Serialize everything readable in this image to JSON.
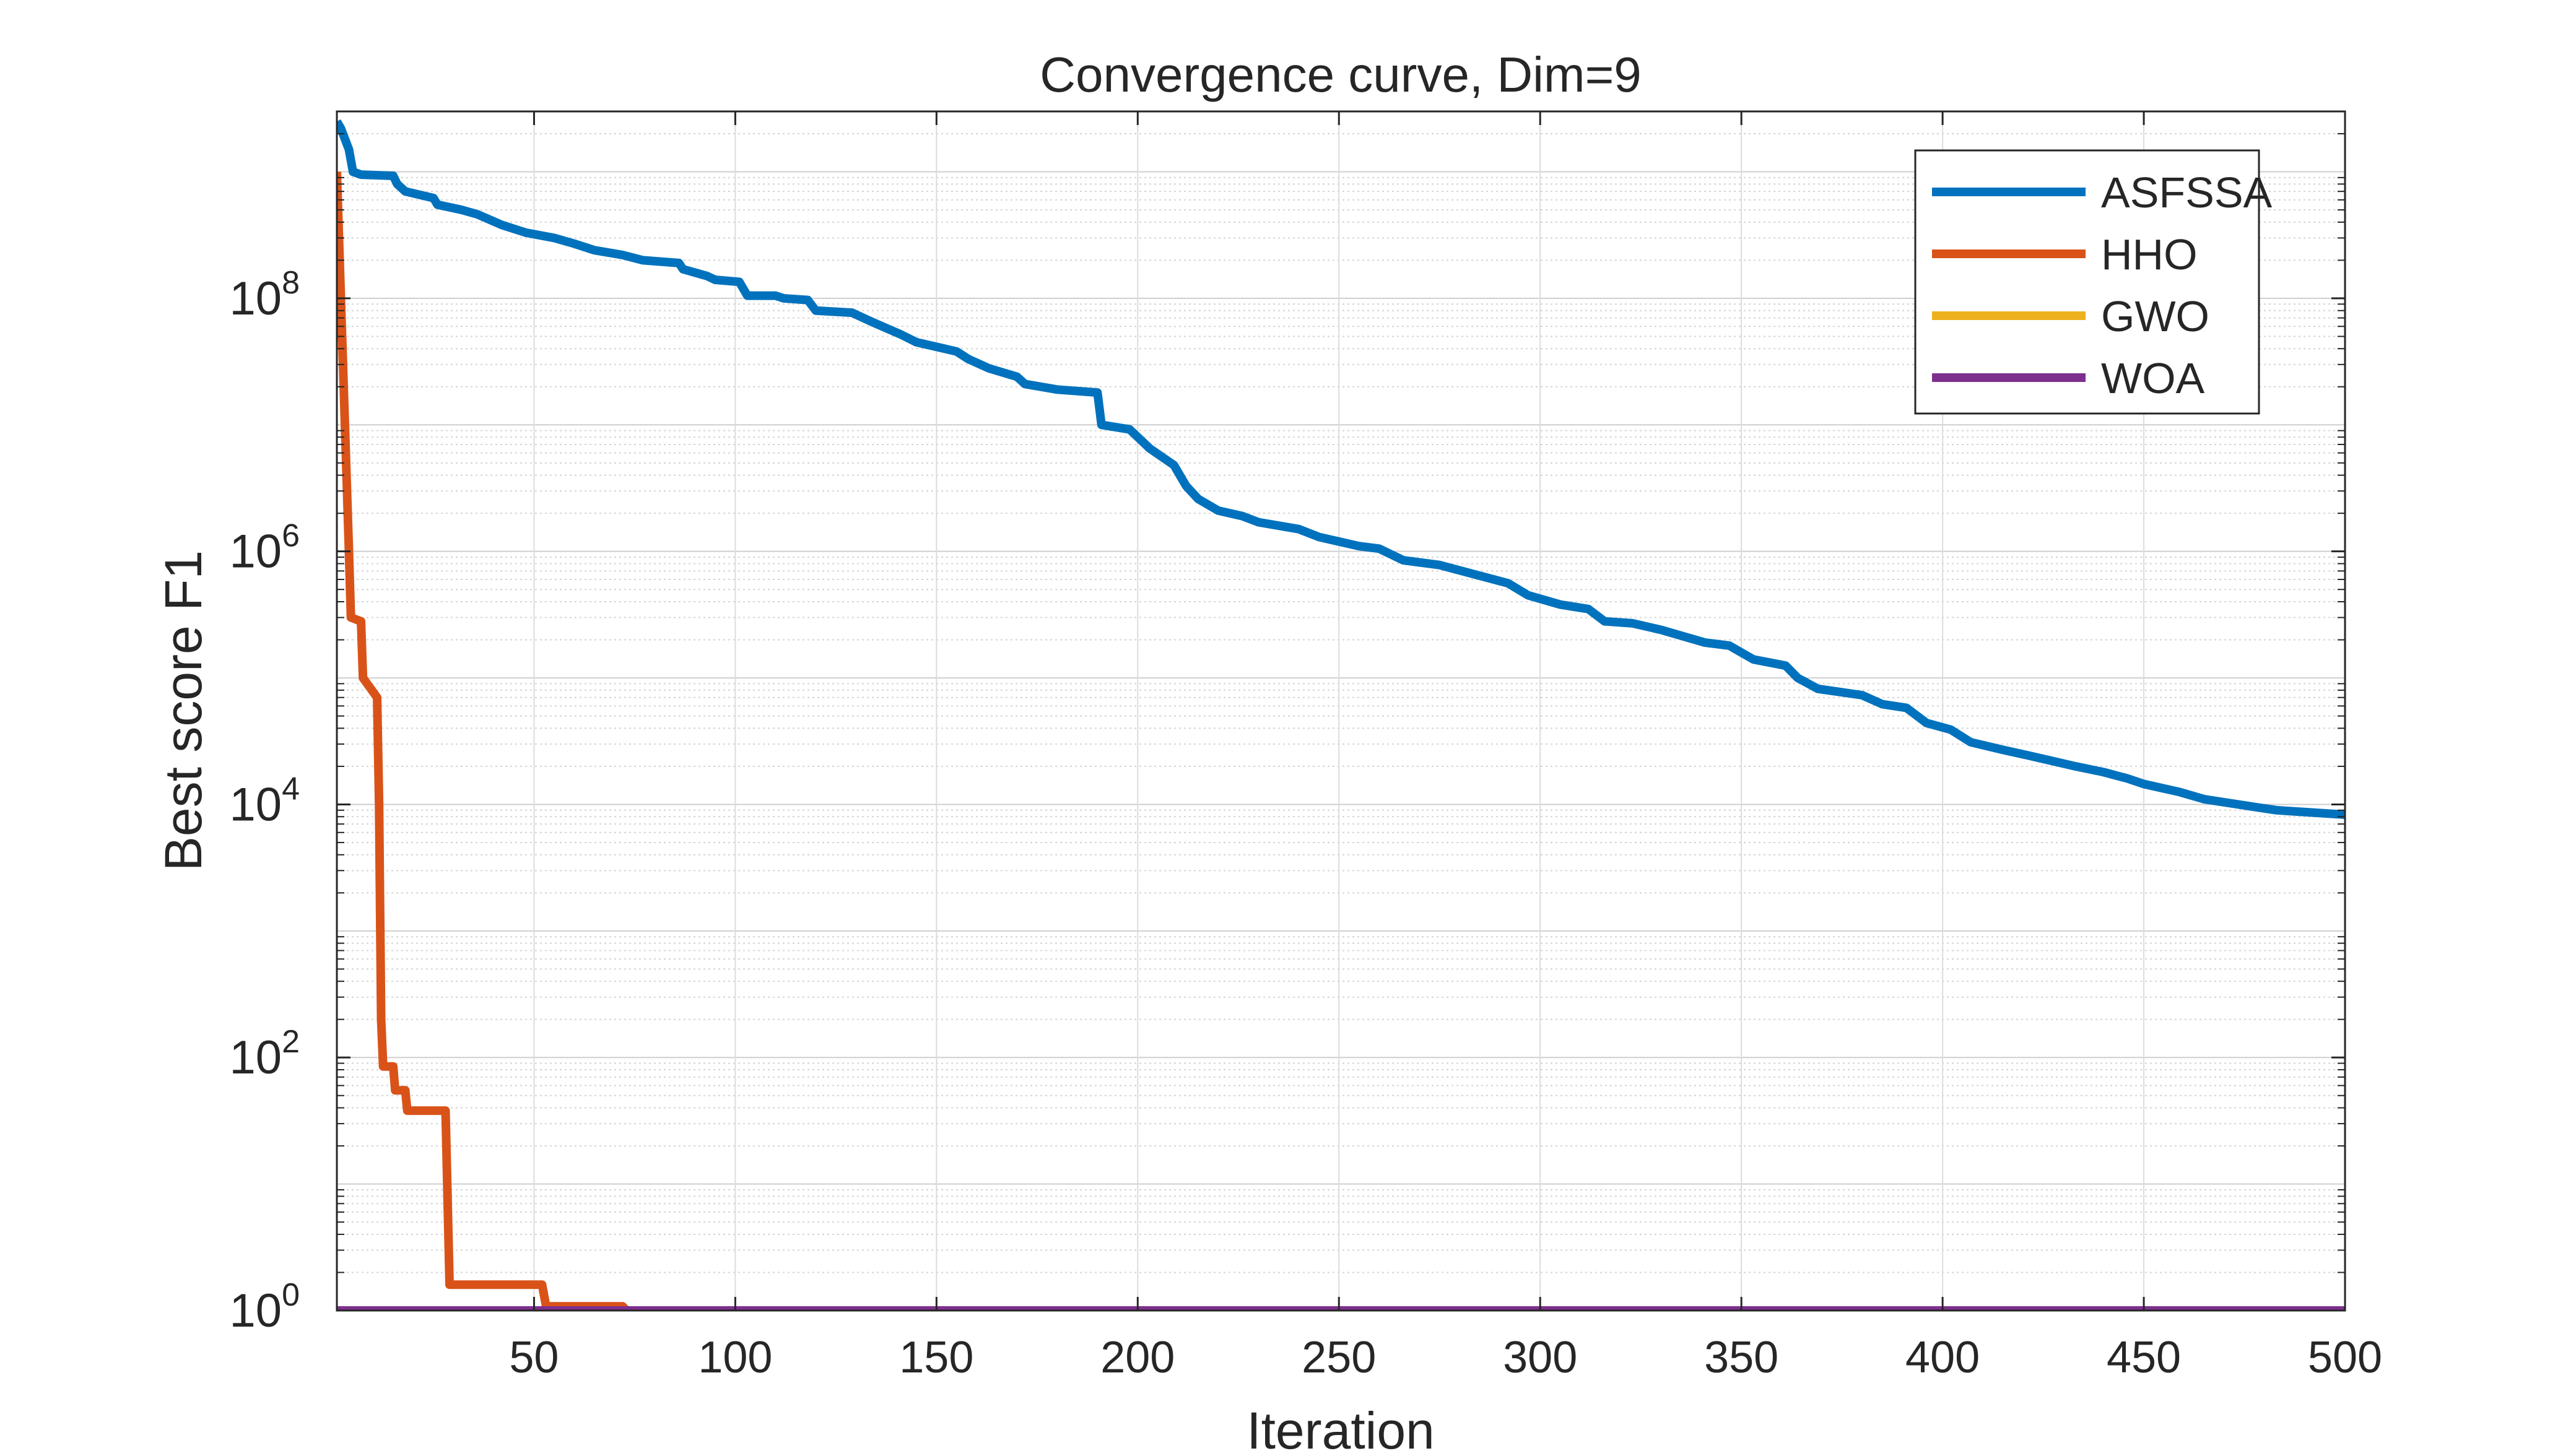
{
  "chart_data": {
    "type": "line",
    "title": "Convergence curve, Dim=9",
    "xlabel": "Iteration",
    "ylabel": "Best score F1",
    "xlim": [
      1,
      500
    ],
    "ylim": [
      1,
      3000000000.0
    ],
    "yscale": "log",
    "grid": true,
    "legend_position": "top-right",
    "x_ticks": [
      50,
      100,
      150,
      200,
      250,
      300,
      350,
      400,
      450,
      500
    ],
    "y_ticks": [
      {
        "base": "10",
        "exp": "0",
        "value": 1
      },
      {
        "base": "10",
        "exp": "2",
        "value": 100
      },
      {
        "base": "10",
        "exp": "4",
        "value": 10000
      },
      {
        "base": "10",
        "exp": "6",
        "value": 1000000
      },
      {
        "base": "10",
        "exp": "8",
        "value": 100000000
      }
    ],
    "series": [
      {
        "name": "ASFSSA",
        "color": "#0072BD",
        "points": [
          [
            1,
            2500000000.0
          ],
          [
            2,
            2200000000.0
          ],
          [
            4,
            1500000000.0
          ],
          [
            5,
            1000000000.0
          ],
          [
            7,
            950000000.0
          ],
          [
            15,
            930000000.0
          ],
          [
            16,
            800000000.0
          ],
          [
            18,
            700000000.0
          ],
          [
            25,
            620000000.0
          ],
          [
            26,
            550000000.0
          ],
          [
            32,
            500000000.0
          ],
          [
            36,
            460000000.0
          ],
          [
            42,
            380000000.0
          ],
          [
            48,
            330000000.0
          ],
          [
            55,
            300000000.0
          ],
          [
            60,
            270000000.0
          ],
          [
            65,
            240000000.0
          ],
          [
            72,
            220000000.0
          ],
          [
            77,
            200000000.0
          ],
          [
            86,
            190000000.0
          ],
          [
            87,
            170000000.0
          ],
          [
            93,
            150000000.0
          ],
          [
            95,
            140000000.0
          ],
          [
            101,
            135000000.0
          ],
          [
            103,
            105000000.0
          ],
          [
            110,
            105000000.0
          ],
          [
            112,
            100000000.0
          ],
          [
            118,
            97000000.0
          ],
          [
            120,
            80000000.0
          ],
          [
            129,
            77000000.0
          ],
          [
            134,
            65000000.0
          ],
          [
            141,
            52000000.0
          ],
          [
            145,
            45000000.0
          ],
          [
            155,
            38000000.0
          ],
          [
            158,
            33000000.0
          ],
          [
            163,
            28000000.0
          ],
          [
            170,
            24000000.0
          ],
          [
            172,
            21000000.0
          ],
          [
            180,
            19000000.0
          ],
          [
            190,
            18000000.0
          ],
          [
            191,
            10000000.0
          ],
          [
            198,
            9200000.0
          ],
          [
            203,
            6500000.0
          ],
          [
            209,
            4800000.0
          ],
          [
            212,
            3300000.0
          ],
          [
            215,
            2600000.0
          ],
          [
            220,
            2100000.0
          ],
          [
            226,
            1900000.0
          ],
          [
            230,
            1700000.0
          ],
          [
            240,
            1500000.0
          ],
          [
            245,
            1300000.0
          ],
          [
            255,
            1100000.0
          ],
          [
            260,
            1050000.0
          ],
          [
            266,
            850000.0
          ],
          [
            275,
            780000.0
          ],
          [
            282,
            680000.0
          ],
          [
            292,
            560000.0
          ],
          [
            297,
            450000.0
          ],
          [
            305,
            380000.0
          ],
          [
            312,
            350000.0
          ],
          [
            316,
            280000.0
          ],
          [
            323,
            270000.0
          ],
          [
            330,
            240000.0
          ],
          [
            341,
            190000.0
          ],
          [
            347,
            180000.0
          ],
          [
            353,
            140000.0
          ],
          [
            361,
            125000.0
          ],
          [
            364,
            100000.0
          ],
          [
            369,
            82000.0
          ],
          [
            380,
            73000.0
          ],
          [
            385,
            62000.0
          ],
          [
            391,
            58000.0
          ],
          [
            396,
            44000.0
          ],
          [
            402,
            39000.0
          ],
          [
            407,
            31000.0
          ],
          [
            415,
            27000.0
          ],
          [
            421,
            24500.0
          ],
          [
            433,
            20000.0
          ],
          [
            440,
            18000.0
          ],
          [
            446,
            16000.0
          ],
          [
            450,
            14500.0
          ],
          [
            459,
            12500.0
          ],
          [
            465,
            11000.0
          ],
          [
            478,
            9500.0
          ],
          [
            483,
            9000.0
          ],
          [
            500,
            8300.0
          ]
        ]
      },
      {
        "name": "HHO",
        "color": "#D95319",
        "points": [
          [
            1,
            1000000000.0
          ],
          [
            2,
            100000000.0
          ],
          [
            3,
            10000000.0
          ],
          [
            4,
            1000000.0
          ],
          [
            4.5,
            300000.0
          ],
          [
            7,
            280000.0
          ],
          [
            7.5,
            100000.0
          ],
          [
            11,
            70000.0
          ],
          [
            11.5,
            10000.0
          ],
          [
            12,
            200
          ],
          [
            12.5,
            85
          ],
          [
            15,
            85
          ],
          [
            15.5,
            55
          ],
          [
            18,
            55
          ],
          [
            18.5,
            38
          ],
          [
            28,
            38
          ],
          [
            29,
            1.6
          ],
          [
            52,
            1.6
          ],
          [
            53,
            1.08
          ],
          [
            72,
            1.08
          ],
          [
            73,
            1.0
          ],
          [
            500,
            1.0
          ]
        ]
      },
      {
        "name": "GWO",
        "color": "#EDB120",
        "points": [
          [
            1,
            1.0
          ],
          [
            500,
            1.0
          ]
        ]
      },
      {
        "name": "WOA",
        "color": "#7E2F8E",
        "points": [
          [
            1,
            1.0
          ],
          [
            500,
            1.0
          ]
        ]
      }
    ]
  }
}
